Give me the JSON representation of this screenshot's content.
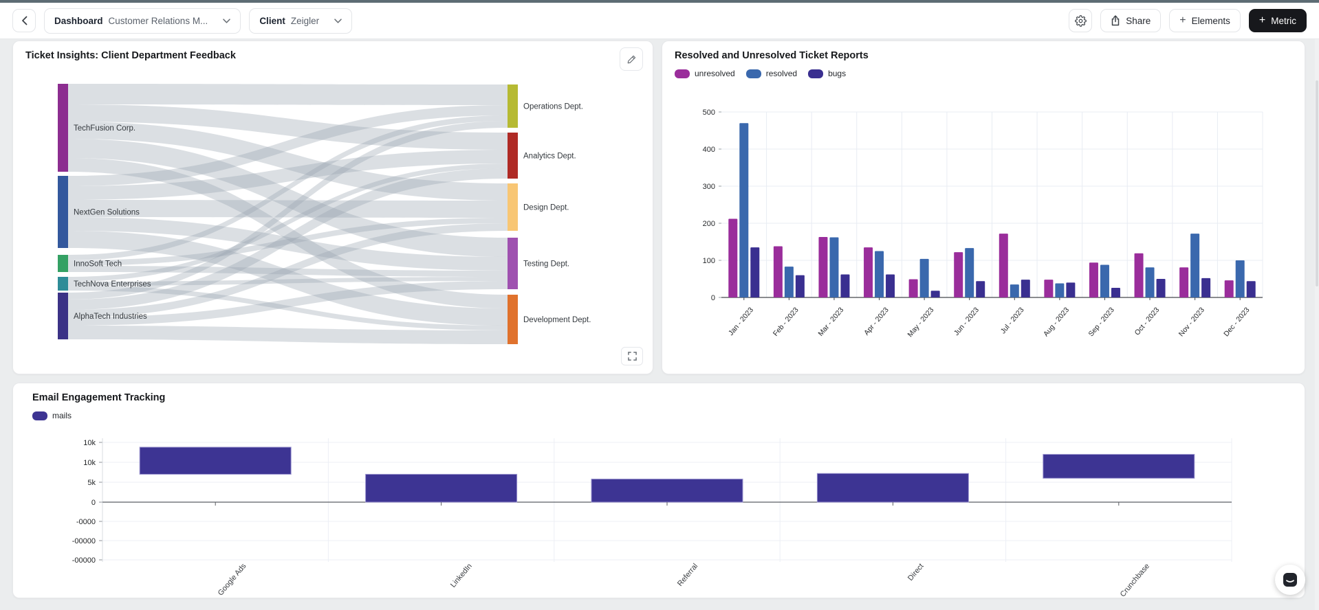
{
  "toolbar": {
    "dashboard_label": "Dashboard",
    "dashboard_value": "Customer Relations M...",
    "client_label": "Client",
    "client_value": "Zeigler",
    "share_label": "Share",
    "elements_label": "Elements",
    "metric_label": "Metric"
  },
  "panels": {
    "sankey": {
      "title": "Ticket Insights: Client Department Feedback"
    },
    "tickets": {
      "title": "Resolved and Unresolved Ticket Reports"
    },
    "email": {
      "title": "Email Engagement Tracking"
    }
  },
  "chart_data": [
    {
      "type": "sankey",
      "title": "Ticket Insights: Client Department Feedback",
      "sources": [
        {
          "name": "TechFusion Corp.",
          "color": "#8c2d90",
          "y": 62
        },
        {
          "name": "NextGen Solutions",
          "color": "#33589d",
          "y": 196
        },
        {
          "name": "InnoSoft Tech",
          "color": "#34a164",
          "y": 311
        },
        {
          "name": "TechNova Enterprises",
          "color": "#2e8c97",
          "y": 343
        },
        {
          "name": "AlphaTech Industries",
          "color": "#3b3286",
          "y": 366
        }
      ],
      "targets": [
        {
          "name": "Operations Dept.",
          "color": "#b6ba33",
          "y": 63
        },
        {
          "name": "Analytics Dept.",
          "color": "#af2a25",
          "y": 133
        },
        {
          "name": "Design Dept.",
          "color": "#f8c674",
          "y": 207
        },
        {
          "name": "Testing Dept.",
          "color": "#9f51b0",
          "y": 286
        },
        {
          "name": "Development Dept.",
          "color": "#e0722d",
          "y": 369
        }
      ],
      "links": [
        {
          "source": "TechFusion Corp.",
          "target": "Operations Dept.",
          "value": 30
        },
        {
          "source": "TechFusion Corp.",
          "target": "Analytics Dept.",
          "value": 25
        },
        {
          "source": "TechFusion Corp.",
          "target": "Design Dept.",
          "value": 25
        },
        {
          "source": "TechFusion Corp.",
          "target": "Testing Dept.",
          "value": 28
        },
        {
          "source": "TechFusion Corp.",
          "target": "Development Dept.",
          "value": 20
        },
        {
          "source": "NextGen Solutions",
          "target": "Operations Dept.",
          "value": 15
        },
        {
          "source": "NextGen Solutions",
          "target": "Analytics Dept.",
          "value": 20
        },
        {
          "source": "NextGen Solutions",
          "target": "Design Dept.",
          "value": 25
        },
        {
          "source": "NextGen Solutions",
          "target": "Testing Dept.",
          "value": 20
        },
        {
          "source": "NextGen Solutions",
          "target": "Development Dept.",
          "value": 25
        },
        {
          "source": "InnoSoft Tech",
          "target": "Operations Dept.",
          "value": 8
        },
        {
          "source": "InnoSoft Tech",
          "target": "Design Dept.",
          "value": 8
        },
        {
          "source": "InnoSoft Tech",
          "target": "Testing Dept.",
          "value": 9
        },
        {
          "source": "TechNova Enterprises",
          "target": "Analytics Dept.",
          "value": 7
        },
        {
          "source": "TechNova Enterprises",
          "target": "Testing Dept.",
          "value": 6
        },
        {
          "source": "TechNova Enterprises",
          "target": "Development Dept.",
          "value": 7
        },
        {
          "source": "AlphaTech Industries",
          "target": "Operations Dept.",
          "value": 10
        },
        {
          "source": "AlphaTech Industries",
          "target": "Analytics Dept.",
          "value": 15
        },
        {
          "source": "AlphaTech Industries",
          "target": "Design Dept.",
          "value": 11
        },
        {
          "source": "AlphaTech Industries",
          "target": "Testing Dept.",
          "value": 12
        },
        {
          "source": "AlphaTech Industries",
          "target": "Development Dept.",
          "value": 20
        }
      ]
    },
    {
      "type": "bar",
      "title": "Resolved and Unresolved Ticket Reports",
      "categories": [
        "Jan - 2023",
        "Feb - 2023",
        "Mar - 2023",
        "Apr - 2023",
        "May - 2023",
        "Jun - 2023",
        "Jul - 2023",
        "Aug - 2023",
        "Sep - 2023",
        "Oct - 2023",
        "Nov - 2023",
        "Dec - 2023"
      ],
      "series": [
        {
          "name": "unresolved",
          "color": "#9a2d9b",
          "values": [
            212,
            138,
            163,
            135,
            49,
            122,
            172,
            48,
            94,
            119,
            81,
            46
          ]
        },
        {
          "name": "resolved",
          "color": "#3a68ad",
          "values": [
            470,
            83,
            162,
            125,
            104,
            133,
            35,
            38,
            88,
            81,
            172,
            100
          ]
        },
        {
          "name": "bugs",
          "color": "#3a2f90",
          "values": [
            135,
            60,
            62,
            62,
            18,
            44,
            48,
            40,
            26,
            50,
            52,
            44
          ]
        }
      ],
      "ylim": [
        0,
        500
      ],
      "yticks": [
        0,
        100,
        200,
        300,
        400,
        500
      ],
      "grid": true,
      "legend_position": "top-left"
    },
    {
      "type": "bar",
      "title": "Email Engagement Tracking",
      "categories": [
        "Google Ads",
        "LinkedIn",
        "Referral",
        "Direct",
        "Crunchbase"
      ],
      "series": [
        {
          "name": "mails",
          "color": "#3d3493",
          "ranges": [
            [
              7000,
              13800
            ],
            [
              0,
              7000
            ],
            [
              0,
              5800
            ],
            [
              0,
              7200
            ],
            [
              6000,
              12000
            ]
          ]
        }
      ],
      "ytick_labels": [
        "10k",
        "10k",
        "5k",
        "0",
        "-0000",
        "-00000",
        "-00000"
      ],
      "grid": true,
      "legend_position": "top-left"
    }
  ]
}
